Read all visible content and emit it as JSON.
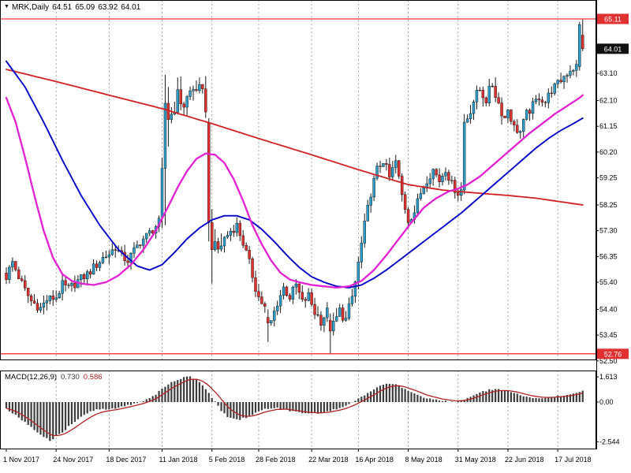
{
  "header": {
    "dropdown_icon": "▼",
    "symbol": "MRK,Daily",
    "open": "64.51",
    "high": "65.09",
    "low": "63.92",
    "close": "64.01"
  },
  "macd_header": {
    "name": "MACD(12,26,9)",
    "value_main": "0.730",
    "value_signal": "0.586"
  },
  "colors": {
    "up": "#2e9bc8",
    "down": "#e03030",
    "wick": "#1a1a1a",
    "ma_slow_red": "#d02020",
    "ma_mid_blue": "#0000c8",
    "ma_fast_magenta": "#e320d4",
    "hline": "#ff0000",
    "badge_line_bg": "#e03030",
    "badge_current_bg": "#111111",
    "badge_text": "#ffffff",
    "hist": "#3c3c3c",
    "signal": "#b22222",
    "grid": "#909090",
    "frame": "#000000",
    "axis_text": "#000000"
  },
  "price_axis": {
    "labels": [
      {
        "p": 63.1,
        "t": "63.10"
      },
      {
        "p": 62.1,
        "t": "62.10"
      },
      {
        "p": 61.15,
        "t": "61.15"
      },
      {
        "p": 60.2,
        "t": "60.20"
      },
      {
        "p": 59.25,
        "t": "59.25"
      },
      {
        "p": 58.25,
        "t": "58.25"
      },
      {
        "p": 57.3,
        "t": "57.30"
      },
      {
        "p": 56.35,
        "t": "56.35"
      },
      {
        "p": 55.4,
        "t": "55.40"
      },
      {
        "p": 54.4,
        "t": "54.40"
      },
      {
        "p": 53.45,
        "t": "53.45"
      },
      {
        "p": 52.5,
        "t": "52.50"
      }
    ],
    "hlines": [
      {
        "p": 65.11,
        "t": "65.11"
      },
      {
        "p": 52.76,
        "t": "52.76"
      }
    ],
    "current": {
      "p": 64.01,
      "t": "64.01"
    }
  },
  "macd_axis": {
    "labels": [
      {
        "v": 1.613,
        "t": "1.613"
      },
      {
        "v": 0.0,
        "t": "0.00"
      },
      {
        "v": -2.544,
        "t": "-2.544"
      }
    ]
  },
  "time_axis": {
    "ticks": [
      {
        "i": 0,
        "label": "1 Nov 2017"
      },
      {
        "i": 16,
        "label": "24 Nov 2017"
      },
      {
        "i": 33,
        "label": "18 Dec 2017"
      },
      {
        "i": 50,
        "label": "11 Jan 2018"
      },
      {
        "i": 66,
        "label": "5 Feb 2018"
      },
      {
        "i": 81,
        "label": "28 Feb 2018"
      },
      {
        "i": 98,
        "label": "22 Mar 2018"
      },
      {
        "i": 113,
        "label": "16 Apr 2018"
      },
      {
        "i": 129,
        "label": "8 May 2018"
      },
      {
        "i": 145,
        "label": "31 May 2018"
      },
      {
        "i": 161,
        "label": "22 Jun 2018"
      },
      {
        "i": 177,
        "label": "17 Jul 2018"
      }
    ]
  },
  "chart_data": {
    "type": "candlestick",
    "symbol": "MRK",
    "timeframe": "Daily",
    "title": "MRK,Daily 64.51 65.09 63.92 64.01",
    "bars": 186,
    "ylim": [
      52.5,
      65.8
    ],
    "resistance_line": 65.11,
    "support_line": 52.76,
    "last_ohlc": {
      "open": 64.51,
      "high": 65.09,
      "low": 63.92,
      "close": 64.01
    },
    "close_anchors": [
      [
        0,
        55.6
      ],
      [
        2,
        56.15
      ],
      [
        4,
        55.6
      ],
      [
        6,
        55.1
      ],
      [
        8,
        54.7
      ],
      [
        11,
        54.45
      ],
      [
        13,
        54.75
      ],
      [
        16,
        54.85
      ],
      [
        18,
        55.3
      ],
      [
        20,
        55.15
      ],
      [
        23,
        55.45
      ],
      [
        26,
        55.7
      ],
      [
        29,
        56.05
      ],
      [
        31,
        56.3
      ],
      [
        33,
        56.45
      ],
      [
        35,
        56.7
      ],
      [
        37,
        56.35
      ],
      [
        39,
        56.2
      ],
      [
        41,
        56.55
      ],
      [
        43,
        56.9
      ],
      [
        45,
        57.1
      ],
      [
        47,
        57.35
      ],
      [
        49,
        57.6
      ],
      [
        51,
        62.0
      ],
      [
        53,
        61.6
      ],
      [
        55,
        62.25
      ],
      [
        57,
        61.95
      ],
      [
        59,
        62.4
      ],
      [
        61,
        62.6
      ],
      [
        63,
        62.25
      ],
      [
        64,
        61.9
      ],
      [
        66,
        56.6
      ],
      [
        68,
        56.6
      ],
      [
        70,
        57.0
      ],
      [
        72,
        57.3
      ],
      [
        74,
        57.5
      ],
      [
        76,
        56.85
      ],
      [
        78,
        56.1
      ],
      [
        80,
        55.2
      ],
      [
        81,
        54.85
      ],
      [
        83,
        54.45
      ],
      [
        85,
        53.95
      ],
      [
        87,
        54.65
      ],
      [
        89,
        55.2
      ],
      [
        91,
        54.85
      ],
      [
        93,
        55.3
      ],
      [
        95,
        54.65
      ],
      [
        97,
        54.9
      ],
      [
        99,
        54.3
      ],
      [
        101,
        54.0
      ],
      [
        103,
        54.3
      ],
      [
        105,
        53.8
      ],
      [
        107,
        54.35
      ],
      [
        109,
        54.0
      ],
      [
        111,
        54.85
      ],
      [
        112,
        55.4
      ],
      [
        113,
        56.1
      ],
      [
        115,
        57.5
      ],
      [
        117,
        58.7
      ],
      [
        119,
        59.55
      ],
      [
        121,
        59.9
      ],
      [
        123,
        59.25
      ],
      [
        125,
        59.85
      ],
      [
        127,
        58.6
      ],
      [
        129,
        57.7
      ],
      [
        131,
        58.0
      ],
      [
        133,
        58.7
      ],
      [
        135,
        59.2
      ],
      [
        137,
        59.55
      ],
      [
        139,
        59.15
      ],
      [
        141,
        59.6
      ],
      [
        143,
        59.0
      ],
      [
        145,
        58.7
      ],
      [
        146,
        58.8
      ],
      [
        148,
        61.5
      ],
      [
        150,
        62.1
      ],
      [
        152,
        62.5
      ],
      [
        154,
        62.15
      ],
      [
        156,
        62.7
      ],
      [
        158,
        62.0
      ],
      [
        160,
        61.45
      ],
      [
        161,
        61.8
      ],
      [
        163,
        61.1
      ],
      [
        165,
        60.95
      ],
      [
        167,
        61.6
      ],
      [
        169,
        61.9
      ],
      [
        171,
        62.25
      ],
      [
        173,
        62.05
      ],
      [
        175,
        62.5
      ],
      [
        177,
        62.7
      ],
      [
        179,
        63.0
      ],
      [
        181,
        63.25
      ],
      [
        183,
        63.35
      ],
      [
        184,
        64.9
      ],
      [
        185,
        64.01
      ]
    ],
    "bar_overrides": [
      {
        "i": 50,
        "o": 57.8,
        "c": 59.6,
        "h": 60.0,
        "l": 57.4
      },
      {
        "i": 51,
        "o": 59.6,
        "c": 62.0,
        "h": 63.05,
        "l": 57.5
      },
      {
        "i": 52,
        "o": 62.0,
        "c": 61.4,
        "h": 62.6,
        "l": 60.4
      },
      {
        "i": 65,
        "o": 61.3,
        "c": 57.6,
        "h": 61.45,
        "l": 56.9
      },
      {
        "i": 66,
        "o": 57.6,
        "c": 56.6,
        "h": 58.1,
        "l": 55.35
      },
      {
        "i": 84,
        "o": 54.1,
        "c": 53.9,
        "h": 54.4,
        "l": 53.2
      },
      {
        "i": 104,
        "o": 54.0,
        "c": 53.6,
        "h": 54.25,
        "l": 52.78
      },
      {
        "i": 147,
        "o": 58.8,
        "c": 61.3,
        "h": 61.6,
        "l": 58.65
      },
      {
        "i": 184,
        "o": 63.35,
        "c": 64.9,
        "h": 65.0,
        "l": 63.2
      },
      {
        "i": 185,
        "o": 64.51,
        "c": 64.01,
        "h": 65.09,
        "l": 63.92
      }
    ],
    "volatility_zones": [
      [
        50,
        70,
        1.8
      ],
      [
        98,
        112,
        1.2
      ],
      [
        146,
        160,
        1.3
      ]
    ],
    "moving_averages": {
      "slow_red": [
        [
          0,
          63.25
        ],
        [
          16,
          62.8
        ],
        [
          33,
          62.3
        ],
        [
          50,
          61.8
        ],
        [
          66,
          61.25
        ],
        [
          81,
          60.7
        ],
        [
          98,
          60.1
        ],
        [
          113,
          59.55
        ],
        [
          129,
          59.0
        ],
        [
          140,
          58.8
        ],
        [
          150,
          58.7
        ],
        [
          161,
          58.6
        ],
        [
          170,
          58.5
        ],
        [
          185,
          58.25
        ]
      ],
      "mid_blue": [
        [
          0,
          63.55
        ],
        [
          6,
          62.6
        ],
        [
          12,
          61.3
        ],
        [
          18,
          59.9
        ],
        [
          24,
          58.6
        ],
        [
          30,
          57.5
        ],
        [
          36,
          56.6
        ],
        [
          42,
          56.0
        ],
        [
          46,
          55.85
        ],
        [
          50,
          56.05
        ],
        [
          54,
          56.5
        ],
        [
          58,
          57.0
        ],
        [
          62,
          57.4
        ],
        [
          66,
          57.7
        ],
        [
          70,
          57.85
        ],
        [
          74,
          57.85
        ],
        [
          78,
          57.7
        ],
        [
          82,
          57.35
        ],
        [
          86,
          56.9
        ],
        [
          90,
          56.4
        ],
        [
          94,
          55.95
        ],
        [
          98,
          55.6
        ],
        [
          102,
          55.4
        ],
        [
          106,
          55.25
        ],
        [
          110,
          55.2
        ],
        [
          114,
          55.3
        ],
        [
          118,
          55.55
        ],
        [
          122,
          55.85
        ],
        [
          126,
          56.2
        ],
        [
          130,
          56.55
        ],
        [
          134,
          56.9
        ],
        [
          138,
          57.25
        ],
        [
          142,
          57.6
        ],
        [
          146,
          57.95
        ],
        [
          150,
          58.35
        ],
        [
          154,
          58.75
        ],
        [
          158,
          59.15
        ],
        [
          162,
          59.55
        ],
        [
          166,
          59.95
        ],
        [
          170,
          60.35
        ],
        [
          174,
          60.7
        ],
        [
          178,
          61.0
        ],
        [
          182,
          61.25
        ],
        [
          185,
          61.45
        ]
      ],
      "fast_magenta": [
        [
          0,
          62.2
        ],
        [
          3,
          61.3
        ],
        [
          6,
          60.0
        ],
        [
          9,
          58.6
        ],
        [
          12,
          57.3
        ],
        [
          15,
          56.3
        ],
        [
          18,
          55.7
        ],
        [
          21,
          55.45
        ],
        [
          24,
          55.35
        ],
        [
          28,
          55.3
        ],
        [
          32,
          55.4
        ],
        [
          36,
          55.65
        ],
        [
          40,
          56.05
        ],
        [
          44,
          56.6
        ],
        [
          48,
          57.3
        ],
        [
          52,
          58.2
        ],
        [
          55,
          58.9
        ],
        [
          58,
          59.5
        ],
        [
          61,
          59.95
        ],
        [
          64,
          60.15
        ],
        [
          67,
          60.1
        ],
        [
          70,
          59.8
        ],
        [
          73,
          59.2
        ],
        [
          76,
          58.4
        ],
        [
          79,
          57.5
        ],
        [
          82,
          56.8
        ],
        [
          85,
          56.2
        ],
        [
          88,
          55.75
        ],
        [
          91,
          55.5
        ],
        [
          94,
          55.4
        ],
        [
          98,
          55.3
        ],
        [
          102,
          55.25
        ],
        [
          106,
          55.2
        ],
        [
          110,
          55.25
        ],
        [
          114,
          55.45
        ],
        [
          118,
          55.85
        ],
        [
          122,
          56.4
        ],
        [
          126,
          57.0
        ],
        [
          130,
          57.6
        ],
        [
          134,
          58.15
        ],
        [
          138,
          58.5
        ],
        [
          142,
          58.75
        ],
        [
          145,
          58.85
        ],
        [
          148,
          59.0
        ],
        [
          152,
          59.3
        ],
        [
          156,
          59.7
        ],
        [
          160,
          60.1
        ],
        [
          164,
          60.5
        ],
        [
          168,
          60.9
        ],
        [
          172,
          61.25
        ],
        [
          176,
          61.6
        ],
        [
          180,
          61.9
        ],
        [
          184,
          62.2
        ],
        [
          185,
          62.3
        ]
      ]
    },
    "macd": {
      "params": "12,26,9",
      "current_macd": 0.73,
      "current_signal": 0.586,
      "scale": [
        -2.544,
        1.613
      ],
      "hist_anchors": [
        [
          0,
          -0.4
        ],
        [
          4,
          -1.0
        ],
        [
          8,
          -1.6
        ],
        [
          12,
          -2.2
        ],
        [
          14,
          -2.45
        ],
        [
          17,
          -2.1
        ],
        [
          21,
          -1.4
        ],
        [
          24,
          -0.9
        ],
        [
          27,
          -0.6
        ],
        [
          30,
          -0.45
        ],
        [
          33,
          -0.5
        ],
        [
          37,
          -0.3
        ],
        [
          41,
          -0.1
        ],
        [
          45,
          0.15
        ],
        [
          48,
          0.5
        ],
        [
          51,
          1.0
        ],
        [
          54,
          1.35
        ],
        [
          57,
          1.58
        ],
        [
          58,
          1.613
        ],
        [
          59,
          1.6
        ],
        [
          61,
          1.45
        ],
        [
          63,
          1.1
        ],
        [
          65,
          0.6
        ],
        [
          67,
          0.0
        ],
        [
          69,
          -0.55
        ],
        [
          71,
          -0.95
        ],
        [
          74,
          -1.15
        ],
        [
          77,
          -1.0
        ],
        [
          80,
          -0.7
        ],
        [
          83,
          -0.45
        ],
        [
          86,
          -0.35
        ],
        [
          89,
          -0.45
        ],
        [
          92,
          -0.6
        ],
        [
          95,
          -0.72
        ],
        [
          98,
          -0.75
        ],
        [
          101,
          -0.68
        ],
        [
          104,
          -0.55
        ],
        [
          107,
          -0.4
        ],
        [
          110,
          -0.15
        ],
        [
          113,
          0.2
        ],
        [
          116,
          0.6
        ],
        [
          119,
          0.95
        ],
        [
          122,
          1.15
        ],
        [
          125,
          1.1
        ],
        [
          128,
          0.85
        ],
        [
          131,
          0.55
        ],
        [
          134,
          0.3
        ],
        [
          137,
          0.15
        ],
        [
          140,
          0.08
        ],
        [
          143,
          0.0
        ],
        [
          146,
          0.1
        ],
        [
          149,
          0.35
        ],
        [
          152,
          0.6
        ],
        [
          155,
          0.78
        ],
        [
          158,
          0.8
        ],
        [
          161,
          0.68
        ],
        [
          164,
          0.5
        ],
        [
          167,
          0.33
        ],
        [
          170,
          0.22
        ],
        [
          173,
          0.25
        ],
        [
          176,
          0.35
        ],
        [
          179,
          0.45
        ],
        [
          182,
          0.55
        ],
        [
          184,
          0.65
        ],
        [
          185,
          0.73
        ]
      ]
    }
  }
}
